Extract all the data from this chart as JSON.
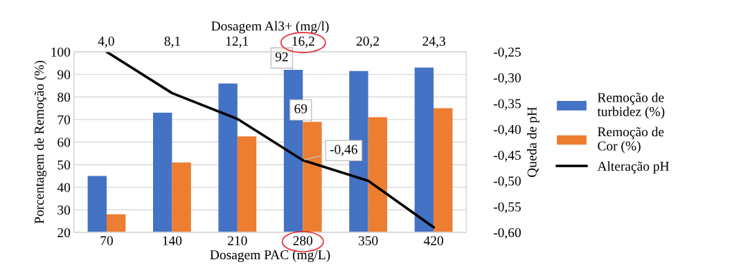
{
  "chart_data": {
    "type": "bar",
    "xlabel": "Dosagem PAC (mg/L)",
    "ylabel": "Porcentagem de Remoção (%)",
    "y2label": "Queda de pH",
    "x2label": "Dosagem Al3+ (mg/l)",
    "categories": [
      "70",
      "140",
      "210",
      "280",
      "350",
      "420"
    ],
    "series": [
      {
        "name": "Remoção de turbidez (%)",
        "color": "#4472c4",
        "values": [
          45,
          73,
          86,
          92,
          91.5,
          93
        ],
        "value_labels": [
          null,
          null,
          null,
          "92",
          null,
          null
        ]
      },
      {
        "name": "Remoção de Cor (%)",
        "color": "#ed7d31",
        "values": [
          28,
          51,
          62.5,
          69,
          71,
          75
        ],
        "value_labels": [
          null,
          null,
          null,
          "69",
          null,
          null
        ]
      },
      {
        "name": "Alteração pH",
        "type": "line",
        "axis": "y2",
        "color": "#000000",
        "values": [
          -0.25,
          -0.33,
          -0.38,
          -0.46,
          -0.5,
          -0.59
        ],
        "value_labels": [
          null,
          null,
          null,
          "-0,46",
          null,
          null
        ]
      }
    ],
    "ylim": [
      20,
      100
    ],
    "yticks": [
      20,
      30,
      40,
      50,
      60,
      70,
      80,
      90,
      100
    ],
    "y2lim": [
      -0.6,
      -0.25
    ],
    "y2ticks": [
      {
        "value": -0.6,
        "label": "-0,60"
      },
      {
        "value": -0.55,
        "label": "-0,55"
      },
      {
        "value": -0.5,
        "label": "-0,50"
      },
      {
        "value": -0.45,
        "label": "-0,45"
      },
      {
        "value": -0.4,
        "label": "-0,40"
      },
      {
        "value": -0.35,
        "label": "-0,35"
      },
      {
        "value": -0.3,
        "label": "-0,30"
      },
      {
        "value": -0.25,
        "label": "-0,25"
      }
    ],
    "x2lim": [
      2.0,
      26.3
    ],
    "x2ticks": [
      {
        "value": 4.0,
        "label": "4,0"
      },
      {
        "value": 8.1,
        "label": "8,1"
      },
      {
        "value": 12.1,
        "label": "12,1"
      },
      {
        "value": 16.2,
        "label": "16,2"
      },
      {
        "value": 20.2,
        "label": "20,2"
      },
      {
        "value": 24.3,
        "label": "24,3"
      }
    ],
    "grid": "y",
    "legend": "right",
    "line_style": "solid",
    "marker": "none"
  }
}
